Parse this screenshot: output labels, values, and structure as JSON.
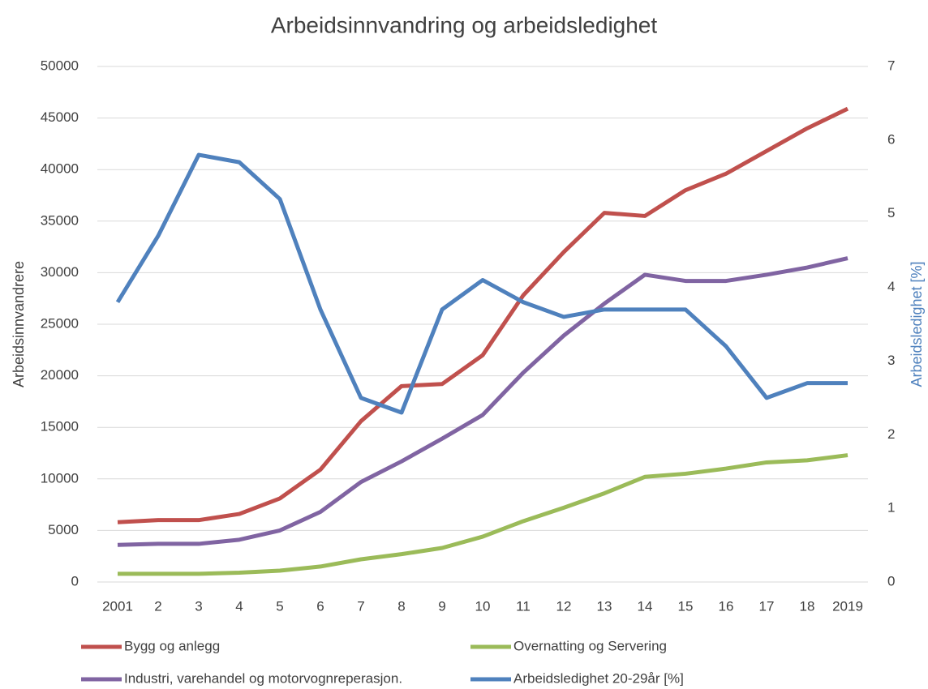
{
  "chart_data": {
    "type": "line",
    "title": "Arbeidsinnvandring og arbeidsledighet",
    "y_label": "Arbeidsinnvandrere",
    "y2_label": "Arbeidsledighet [%]",
    "categories": [
      "2001",
      "2",
      "3",
      "4",
      "5",
      "6",
      "7",
      "8",
      "9",
      "10",
      "11",
      "12",
      "13",
      "14",
      "15",
      "16",
      "17",
      "18",
      "2019"
    ],
    "ylim": [
      0,
      50000
    ],
    "yticks": [
      0,
      5000,
      10000,
      15000,
      20000,
      25000,
      30000,
      35000,
      40000,
      45000,
      50000
    ],
    "y2lim": [
      0,
      7
    ],
    "y2ticks": [
      0,
      1,
      2,
      3,
      4,
      5,
      6,
      7
    ],
    "grid": true,
    "series": [
      {
        "name": "Bygg og anlegg",
        "color": "#c0504d",
        "values": [
          5800,
          6000,
          6000,
          6600,
          8100,
          10900,
          15600,
          19000,
          19200,
          22000,
          27800,
          32000,
          35800,
          35500,
          38000,
          39600,
          41800,
          44000,
          45900
        ]
      },
      {
        "name": "Overnatting og Servering",
        "color": "#9bbb59",
        "values": [
          800,
          800,
          800,
          900,
          1100,
          1500,
          2200,
          2700,
          3300,
          4400,
          5900,
          7200,
          8600,
          10200,
          10500,
          11000,
          11600,
          11800,
          12300
        ]
      },
      {
        "name": "Industri, varehandel og motorvognreperasjon.",
        "color": "#8064a2",
        "values": [
          3600,
          3700,
          3700,
          4100,
          5000,
          6800,
          9700,
          11700,
          13900,
          16200,
          20300,
          23900,
          27000,
          29800,
          29200,
          29200,
          29800,
          30500,
          31400
        ]
      },
      {
        "name": "Arbeidsledighet 20-29år  [%]",
        "color": "#4f81bd",
        "axis": "y2",
        "values": [
          3.8,
          4.7,
          5.8,
          5.7,
          5.2,
          3.7,
          2.5,
          2.3,
          3.7,
          4.1,
          3.8,
          3.6,
          3.7,
          3.7,
          3.7,
          3.2,
          2.5,
          2.7,
          2.7
        ]
      }
    ]
  }
}
